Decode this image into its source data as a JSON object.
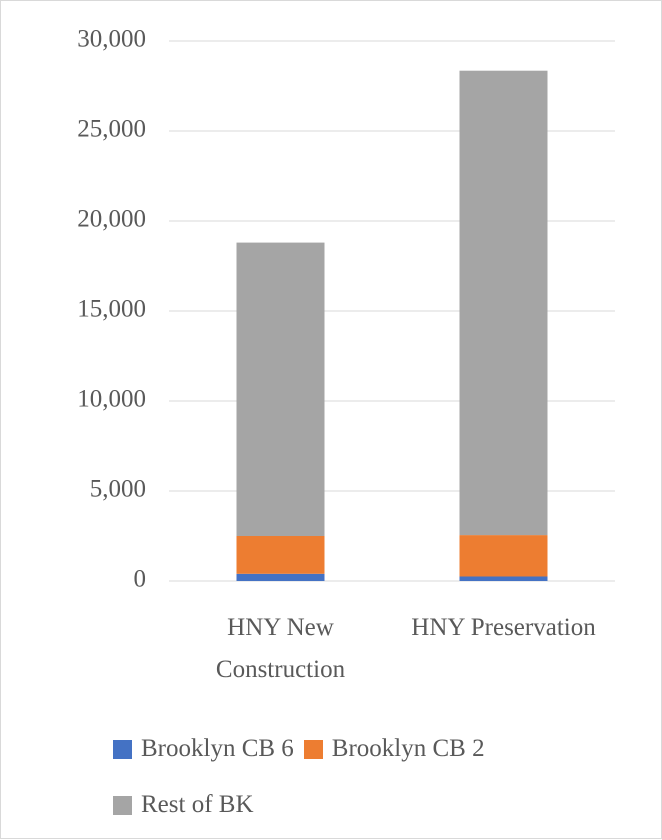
{
  "chart_data": {
    "type": "stacked_bar",
    "categories": [
      "HNY New Construction",
      "HNY Preservation"
    ],
    "series": [
      {
        "name": "Brooklyn CB 6",
        "color": "#4472c4",
        "values": [
          400,
          250
        ]
      },
      {
        "name": "Brooklyn CB 2",
        "color": "#ed7d31",
        "values": [
          2100,
          2300
        ]
      },
      {
        "name": "Rest of BK",
        "color": "#a5a5a5",
        "values": [
          16300,
          25800
        ]
      }
    ],
    "ylim": [
      0,
      30000
    ],
    "yticks": [
      0,
      {
        "value": 5000,
        "label": "5,000"
      },
      {
        "value": 10000,
        "label": "10,000"
      },
      {
        "value": 15000,
        "label": "15,000"
      },
      {
        "value": 20000,
        "label": "20,000"
      },
      {
        "value": 25000,
        "label": "25,000"
      },
      {
        "value": 30000,
        "label": "30,000"
      }
    ],
    "grid": true,
    "legend": "bottom"
  }
}
